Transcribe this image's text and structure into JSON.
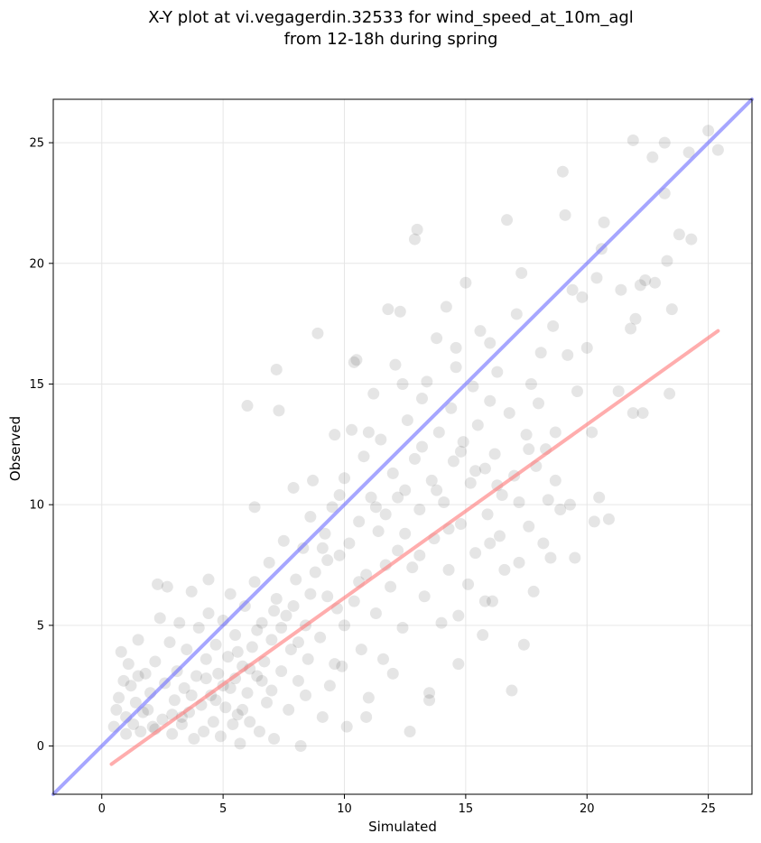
{
  "chart_data": {
    "type": "scatter",
    "title_line1": "X-Y plot at vi.vegagerdin.32533 for wind_speed_at_10m_agl",
    "title_line2": "from 12-18h during spring",
    "xlabel": "Simulated",
    "ylabel": "Observed",
    "xlim": [
      -2.0,
      26.8
    ],
    "ylim": [
      -2.0,
      26.8
    ],
    "xticks": [
      0,
      5,
      10,
      15,
      20,
      25
    ],
    "yticks": [
      0,
      5,
      10,
      15,
      20,
      25
    ],
    "grid": true,
    "point_color": "#000000",
    "point_alpha": 0.1,
    "points_sampled_estimate": true,
    "points": [
      [
        0.5,
        0.8
      ],
      [
        0.6,
        1.5
      ],
      [
        0.7,
        2.0
      ],
      [
        0.8,
        3.9
      ],
      [
        0.9,
        2.7
      ],
      [
        1.0,
        0.5
      ],
      [
        1.0,
        1.2
      ],
      [
        1.1,
        3.4
      ],
      [
        1.2,
        2.5
      ],
      [
        1.3,
        0.9
      ],
      [
        1.4,
        1.8
      ],
      [
        1.5,
        4.4
      ],
      [
        1.5,
        2.9
      ],
      [
        1.6,
        0.6
      ],
      [
        1.7,
        1.4
      ],
      [
        1.8,
        3.0
      ],
      [
        2.0,
        2.2
      ],
      [
        2.1,
        0.8
      ],
      [
        2.2,
        3.5
      ],
      [
        2.3,
        6.7
      ],
      [
        2.4,
        5.3
      ],
      [
        2.5,
        1.1
      ],
      [
        2.6,
        2.6
      ],
      [
        2.7,
        6.6
      ],
      [
        2.8,
        4.3
      ],
      [
        2.9,
        0.5
      ],
      [
        3.0,
        1.9
      ],
      [
        3.1,
        3.1
      ],
      [
        3.2,
        5.1
      ],
      [
        3.3,
        0.9
      ],
      [
        3.4,
        2.4
      ],
      [
        3.5,
        4.0
      ],
      [
        3.6,
        1.4
      ],
      [
        3.7,
        6.4
      ],
      [
        3.8,
        0.3
      ],
      [
        3.9,
        2.9
      ],
      [
        4.0,
        4.9
      ],
      [
        4.1,
        1.7
      ],
      [
        4.2,
        0.6
      ],
      [
        4.3,
        3.6
      ],
      [
        4.4,
        5.5
      ],
      [
        4.4,
        6.9
      ],
      [
        4.5,
        2.1
      ],
      [
        4.6,
        1.0
      ],
      [
        4.7,
        4.2
      ],
      [
        4.8,
        3.0
      ],
      [
        4.9,
        0.4
      ],
      [
        5.0,
        2.5
      ],
      [
        5.0,
        5.2
      ],
      [
        5.1,
        1.6
      ],
      [
        5.2,
        3.7
      ],
      [
        5.3,
        6.3
      ],
      [
        5.4,
        0.9
      ],
      [
        5.5,
        2.8
      ],
      [
        5.5,
        4.6
      ],
      [
        5.6,
        1.3
      ],
      [
        5.7,
        0.1
      ],
      [
        5.8,
        3.3
      ],
      [
        5.9,
        5.8
      ],
      [
        6.0,
        2.2
      ],
      [
        6.0,
        14.1
      ],
      [
        6.1,
        1.0
      ],
      [
        6.2,
        4.1
      ],
      [
        6.3,
        6.8
      ],
      [
        6.3,
        9.9
      ],
      [
        6.4,
        2.9
      ],
      [
        6.5,
        0.6
      ],
      [
        6.6,
        5.1
      ],
      [
        6.7,
        3.5
      ],
      [
        6.8,
        1.8
      ],
      [
        6.9,
        7.6
      ],
      [
        7.0,
        4.4
      ],
      [
        7.0,
        2.3
      ],
      [
        7.1,
        0.3
      ],
      [
        7.2,
        6.1
      ],
      [
        7.2,
        15.6
      ],
      [
        7.3,
        13.9
      ],
      [
        7.4,
        3.1
      ],
      [
        7.5,
        8.5
      ],
      [
        7.6,
        5.4
      ],
      [
        7.7,
        1.5
      ],
      [
        7.8,
        4.0
      ],
      [
        7.9,
        10.7
      ],
      [
        8.0,
        6.9
      ],
      [
        8.1,
        2.7
      ],
      [
        8.2,
        0.0
      ],
      [
        8.3,
        8.2
      ],
      [
        8.4,
        5.0
      ],
      [
        8.5,
        3.6
      ],
      [
        8.6,
        9.5
      ],
      [
        8.7,
        11.0
      ],
      [
        8.8,
        7.2
      ],
      [
        8.9,
        17.1
      ],
      [
        9.0,
        4.5
      ],
      [
        9.1,
        1.2
      ],
      [
        9.2,
        8.8
      ],
      [
        9.3,
        6.2
      ],
      [
        9.4,
        2.5
      ],
      [
        9.5,
        9.9
      ],
      [
        9.6,
        12.9
      ],
      [
        9.7,
        5.7
      ],
      [
        9.8,
        7.9
      ],
      [
        9.9,
        3.3
      ],
      [
        10.0,
        11.1
      ],
      [
        10.1,
        0.8
      ],
      [
        10.2,
        8.4
      ],
      [
        10.3,
        13.1
      ],
      [
        10.4,
        6.0
      ],
      [
        10.5,
        16.0
      ],
      [
        10.6,
        9.3
      ],
      [
        10.7,
        4.0
      ],
      [
        10.8,
        12.0
      ],
      [
        10.9,
        7.1
      ],
      [
        11.0,
        2.0
      ],
      [
        11.1,
        10.3
      ],
      [
        11.2,
        14.6
      ],
      [
        11.3,
        5.5
      ],
      [
        11.4,
        8.9
      ],
      [
        11.5,
        12.7
      ],
      [
        11.6,
        3.6
      ],
      [
        11.7,
        9.6
      ],
      [
        11.8,
        18.1
      ],
      [
        11.9,
        6.6
      ],
      [
        12.0,
        11.3
      ],
      [
        12.1,
        15.8
      ],
      [
        12.2,
        8.1
      ],
      [
        12.3,
        18.0
      ],
      [
        12.4,
        4.9
      ],
      [
        12.5,
        10.6
      ],
      [
        12.6,
        13.5
      ],
      [
        12.7,
        0.6
      ],
      [
        12.8,
        7.4
      ],
      [
        12.9,
        21.0
      ],
      [
        13.0,
        21.4
      ],
      [
        13.1,
        9.8
      ],
      [
        13.2,
        12.4
      ],
      [
        13.3,
        6.2
      ],
      [
        13.4,
        15.1
      ],
      [
        13.5,
        1.9
      ],
      [
        13.6,
        11.0
      ],
      [
        13.7,
        8.6
      ],
      [
        13.8,
        16.9
      ],
      [
        13.9,
        13.0
      ],
      [
        14.0,
        5.1
      ],
      [
        14.1,
        10.1
      ],
      [
        14.2,
        18.2
      ],
      [
        14.3,
        7.3
      ],
      [
        14.4,
        14.0
      ],
      [
        14.5,
        11.8
      ],
      [
        14.6,
        16.5
      ],
      [
        14.7,
        3.4
      ],
      [
        14.8,
        9.2
      ],
      [
        14.9,
        12.6
      ],
      [
        15.0,
        19.2
      ],
      [
        15.1,
        6.7
      ],
      [
        15.2,
        10.9
      ],
      [
        15.3,
        14.9
      ],
      [
        15.4,
        8.0
      ],
      [
        15.5,
        13.3
      ],
      [
        15.6,
        17.2
      ],
      [
        15.7,
        4.6
      ],
      [
        15.8,
        11.5
      ],
      [
        15.9,
        9.6
      ],
      [
        16.0,
        14.3
      ],
      [
        16.1,
        6.0
      ],
      [
        16.2,
        12.1
      ],
      [
        16.3,
        15.5
      ],
      [
        16.4,
        8.7
      ],
      [
        16.5,
        10.4
      ],
      [
        16.7,
        21.8
      ],
      [
        16.8,
        13.8
      ],
      [
        16.9,
        2.3
      ],
      [
        17.0,
        11.2
      ],
      [
        17.1,
        17.9
      ],
      [
        17.2,
        7.6
      ],
      [
        17.3,
        19.6
      ],
      [
        17.4,
        4.2
      ],
      [
        17.5,
        12.9
      ],
      [
        17.6,
        9.1
      ],
      [
        17.7,
        15.0
      ],
      [
        17.8,
        6.4
      ],
      [
        17.9,
        11.6
      ],
      [
        18.0,
        14.2
      ],
      [
        18.1,
        16.3
      ],
      [
        18.2,
        8.4
      ],
      [
        18.3,
        12.3
      ],
      [
        18.4,
        10.2
      ],
      [
        18.5,
        7.8
      ],
      [
        18.6,
        17.4
      ],
      [
        18.7,
        13.0
      ],
      [
        18.9,
        9.8
      ],
      [
        19.0,
        23.8
      ],
      [
        19.1,
        22.0
      ],
      [
        19.2,
        16.2
      ],
      [
        19.3,
        10.0
      ],
      [
        19.4,
        18.9
      ],
      [
        19.5,
        7.8
      ],
      [
        19.6,
        14.7
      ],
      [
        19.8,
        18.6
      ],
      [
        20.0,
        16.5
      ],
      [
        20.2,
        13.0
      ],
      [
        20.3,
        9.3
      ],
      [
        20.4,
        19.4
      ],
      [
        20.5,
        10.3
      ],
      [
        20.6,
        20.6
      ],
      [
        20.7,
        21.7
      ],
      [
        20.9,
        9.4
      ],
      [
        21.3,
        14.7
      ],
      [
        21.4,
        18.9
      ],
      [
        21.8,
        17.3
      ],
      [
        21.9,
        25.1
      ],
      [
        21.9,
        13.8
      ],
      [
        22.0,
        17.7
      ],
      [
        22.2,
        19.1
      ],
      [
        22.3,
        13.8
      ],
      [
        22.4,
        19.3
      ],
      [
        22.7,
        24.4
      ],
      [
        22.8,
        19.2
      ],
      [
        23.2,
        22.9
      ],
      [
        23.2,
        25.0
      ],
      [
        23.3,
        20.1
      ],
      [
        23.4,
        14.6
      ],
      [
        23.5,
        18.1
      ],
      [
        23.8,
        21.2
      ],
      [
        24.2,
        24.6
      ],
      [
        24.3,
        21.0
      ],
      [
        25.0,
        25.5
      ],
      [
        25.4,
        24.7
      ],
      [
        3.3,
        1.2
      ],
      [
        4.7,
        1.9
      ],
      [
        5.3,
        2.4
      ],
      [
        5.8,
        1.5
      ],
      [
        6.1,
        3.2
      ],
      [
        6.6,
        2.7
      ],
      [
        7.4,
        4.9
      ],
      [
        7.9,
        5.8
      ],
      [
        8.6,
        6.3
      ],
      [
        9.3,
        7.7
      ],
      [
        10.6,
        6.8
      ],
      [
        11.7,
        7.5
      ],
      [
        12.2,
        10.3
      ],
      [
        13.1,
        7.9
      ],
      [
        14.3,
        9.0
      ],
      [
        9.8,
        10.4
      ],
      [
        11.0,
        13.0
      ],
      [
        12.9,
        11.9
      ],
      [
        14.8,
        12.2
      ],
      [
        16.3,
        10.8
      ],
      [
        17.6,
        12.3
      ],
      [
        8.1,
        4.3
      ],
      [
        7.1,
        5.6
      ],
      [
        6.4,
        4.8
      ],
      [
        5.6,
        3.9
      ],
      [
        4.3,
        2.8
      ],
      [
        3.7,
        2.1
      ],
      [
        2.9,
        1.3
      ],
      [
        2.2,
        0.7
      ],
      [
        1.9,
        1.5
      ],
      [
        12.5,
        8.8
      ],
      [
        13.8,
        10.6
      ],
      [
        15.4,
        11.4
      ],
      [
        16.0,
        8.4
      ],
      [
        9.1,
        8.2
      ],
      [
        10.0,
        5.0
      ],
      [
        11.3,
        9.9
      ],
      [
        8.4,
        2.1
      ],
      [
        9.6,
        3.4
      ],
      [
        10.9,
        1.2
      ],
      [
        12.0,
        3.0
      ],
      [
        13.5,
        2.2
      ],
      [
        14.7,
        5.4
      ],
      [
        15.8,
        6.0
      ],
      [
        16.6,
        7.3
      ],
      [
        17.2,
        10.1
      ],
      [
        18.7,
        11.0
      ],
      [
        10.4,
        15.9
      ],
      [
        12.4,
        15.0
      ],
      [
        13.2,
        14.4
      ],
      [
        14.6,
        15.7
      ],
      [
        16.0,
        16.7
      ]
    ],
    "reference_lines": [
      {
        "name": "1:1",
        "color": "#6b6bff",
        "x": [
          -2.0,
          26.8
        ],
        "y": [
          -2.0,
          26.8
        ]
      },
      {
        "name": "fit",
        "color": "#ff7777",
        "x": [
          0.4,
          25.4
        ],
        "y": [
          -0.75,
          17.2
        ]
      }
    ]
  }
}
